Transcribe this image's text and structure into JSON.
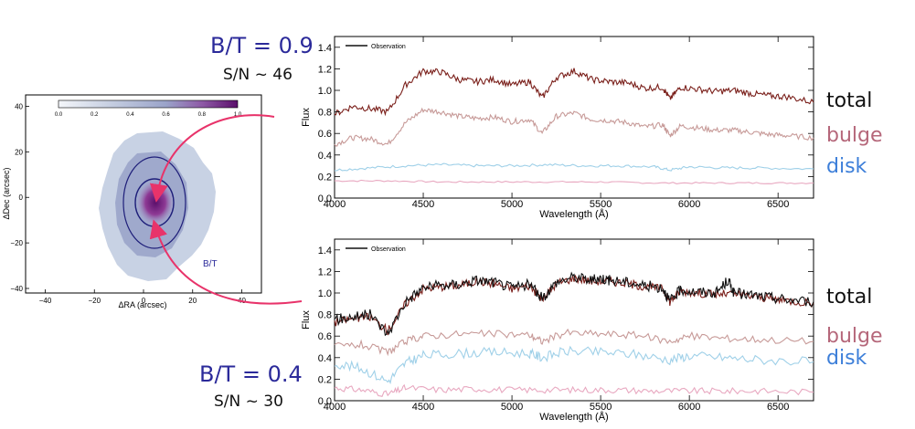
{
  "annotations": {
    "top_bt": "B/T = 0.9",
    "top_sn": "S/N ~ 46",
    "bottom_bt": "B/T = 0.4",
    "bottom_sn": "S/N ~ 30",
    "map_label": "B/T",
    "components": {
      "total": "total",
      "bulge": "bulge",
      "disk": "disk"
    }
  },
  "colors": {
    "observation": "#111111",
    "total": "#7a1f1a",
    "bulge": "#c79a98",
    "disk": "#9fd0e8",
    "disk_bottom_panel": "#e8a8c0",
    "arrows": "#e8336a",
    "bt_text": "#2b2a9a",
    "bulge_label": "#b5677a",
    "disk_label": "#3d7fd9"
  },
  "chart_data": [
    {
      "type": "heatmap",
      "title": "",
      "xlabel": "ΔRA (arcsec)",
      "ylabel": "ΔDec (arcsec)",
      "xlim": [
        -48,
        48
      ],
      "ylim": [
        -42,
        45
      ],
      "xticks": [
        -40,
        -20,
        0,
        20,
        40
      ],
      "yticks": [
        40,
        20,
        0,
        -20,
        -40
      ],
      "colorbar": {
        "ticks": [
          0.0,
          0.2,
          0.4,
          0.6,
          0.8,
          1.0
        ],
        "labels": [
          "0.0",
          "0.2",
          "0.4",
          "0.6",
          "0.8",
          "1.0"
        ]
      },
      "inner_ellipse": {
        "center": [
          0,
          0
        ],
        "semi_axes": [
          10,
          14
        ]
      },
      "outer_ellipse": {
        "center": [
          0,
          0
        ],
        "semi_axes": [
          16,
          28
        ]
      }
    },
    {
      "type": "line",
      "legend": [
        "Observation"
      ],
      "xlabel": "Wavelength (Å)",
      "ylabel": "Flux",
      "xlim": [
        4000,
        6700
      ],
      "ylim": [
        0.0,
        1.5
      ],
      "xticks": [
        4000,
        4500,
        5000,
        5500,
        6000,
        6500
      ],
      "yticks": [
        0.0,
        0.2,
        0.4,
        0.6,
        0.8,
        1.0,
        1.2,
        1.4
      ],
      "series": [
        {
          "points": [
            [
              4000,
              0.78
            ],
            [
              4100,
              0.85
            ],
            [
              4200,
              0.83
            ],
            [
              4300,
              0.8
            ],
            [
              4400,
              1.05
            ],
            [
              4500,
              1.18
            ],
            [
              4600,
              1.17
            ],
            [
              4700,
              1.1
            ],
            [
              4800,
              1.08
            ],
            [
              4900,
              1.1
            ],
            [
              5000,
              1.05
            ],
            [
              5100,
              1.08
            ],
            [
              5170,
              0.93
            ],
            [
              5250,
              1.12
            ],
            [
              5350,
              1.18
            ],
            [
              5450,
              1.1
            ],
            [
              5550,
              1.08
            ],
            [
              5650,
              1.07
            ],
            [
              5750,
              1.02
            ],
            [
              5850,
              1.03
            ],
            [
              5890,
              0.92
            ],
            [
              5950,
              1.03
            ],
            [
              6050,
              1.01
            ],
            [
              6150,
              0.99
            ],
            [
              6250,
              1.0
            ],
            [
              6350,
              0.97
            ],
            [
              6450,
              0.95
            ],
            [
              6550,
              0.94
            ],
            [
              6700,
              0.89
            ]
          ]
        },
        {
          "points": [
            [
              4000,
              0.5
            ],
            [
              4100,
              0.56
            ],
            [
              4200,
              0.55
            ],
            [
              4300,
              0.5
            ],
            [
              4400,
              0.7
            ],
            [
              4500,
              0.82
            ],
            [
              4600,
              0.8
            ],
            [
              4700,
              0.76
            ],
            [
              4800,
              0.74
            ],
            [
              4900,
              0.75
            ],
            [
              5000,
              0.71
            ],
            [
              5100,
              0.73
            ],
            [
              5170,
              0.6
            ],
            [
              5250,
              0.76
            ],
            [
              5350,
              0.79
            ],
            [
              5450,
              0.73
            ],
            [
              5550,
              0.72
            ],
            [
              5650,
              0.7
            ],
            [
              5750,
              0.66
            ],
            [
              5850,
              0.68
            ],
            [
              5890,
              0.58
            ],
            [
              5950,
              0.67
            ],
            [
              6050,
              0.65
            ],
            [
              6150,
              0.63
            ],
            [
              6250,
              0.63
            ],
            [
              6350,
              0.61
            ],
            [
              6450,
              0.59
            ],
            [
              6550,
              0.58
            ],
            [
              6700,
              0.56
            ]
          ]
        },
        {
          "points": [
            [
              4000,
              0.26
            ],
            [
              4200,
              0.28
            ],
            [
              4400,
              0.3
            ],
            [
              4600,
              0.31
            ],
            [
              4800,
              0.3
            ],
            [
              5000,
              0.3
            ],
            [
              5200,
              0.31
            ],
            [
              5400,
              0.3
            ],
            [
              5600,
              0.3
            ],
            [
              5800,
              0.29
            ],
            [
              5890,
              0.26
            ],
            [
              6000,
              0.29
            ],
            [
              6200,
              0.28
            ],
            [
              6400,
              0.28
            ],
            [
              6700,
              0.27
            ]
          ]
        },
        {
          "points": [
            [
              4000,
              0.16
            ],
            [
              4300,
              0.16
            ],
            [
              4600,
              0.15
            ],
            [
              4900,
              0.15
            ],
            [
              5200,
              0.15
            ],
            [
              5500,
              0.15
            ],
            [
              5800,
              0.14
            ],
            [
              6100,
              0.14
            ],
            [
              6400,
              0.14
            ],
            [
              6700,
              0.14
            ]
          ]
        }
      ]
    },
    {
      "type": "line",
      "legend": [
        "Observation"
      ],
      "xlabel": "Wavelength (Å)",
      "ylabel": "Flux",
      "xlim": [
        4000,
        6700
      ],
      "ylim": [
        0.0,
        1.5
      ],
      "xticks": [
        4000,
        4500,
        5000,
        5500,
        6000,
        6500
      ],
      "yticks": [
        0.0,
        0.2,
        0.4,
        0.6,
        0.8,
        1.0,
        1.2,
        1.4
      ],
      "series": [
        {
          "points": [
            [
              4000,
              0.75
            ],
            [
              4100,
              0.78
            ],
            [
              4200,
              0.8
            ],
            [
              4300,
              0.62
            ],
            [
              4400,
              0.92
            ],
            [
              4500,
              1.05
            ],
            [
              4600,
              1.07
            ],
            [
              4700,
              1.08
            ],
            [
              4800,
              1.12
            ],
            [
              4900,
              1.1
            ],
            [
              5000,
              1.05
            ],
            [
              5100,
              1.08
            ],
            [
              5170,
              0.95
            ],
            [
              5250,
              1.1
            ],
            [
              5350,
              1.15
            ],
            [
              5450,
              1.12
            ],
            [
              5500,
              1.14
            ],
            [
              5550,
              1.12
            ],
            [
              5650,
              1.1
            ],
            [
              5750,
              1.07
            ],
            [
              5850,
              1.05
            ],
            [
              5890,
              0.92
            ],
            [
              5950,
              1.03
            ],
            [
              6050,
              1.01
            ],
            [
              6150,
              1.0
            ],
            [
              6220,
              1.12
            ],
            [
              6250,
              1.0
            ],
            [
              6350,
              0.98
            ],
            [
              6450,
              0.96
            ],
            [
              6550,
              0.94
            ],
            [
              6700,
              0.92
            ]
          ]
        },
        {
          "points": [
            [
              4000,
              0.73
            ],
            [
              4100,
              0.76
            ],
            [
              4200,
              0.78
            ],
            [
              4300,
              0.65
            ],
            [
              4400,
              0.9
            ],
            [
              4500,
              1.04
            ],
            [
              4600,
              1.06
            ],
            [
              4700,
              1.07
            ],
            [
              4800,
              1.11
            ],
            [
              4900,
              1.09
            ],
            [
              5000,
              1.04
            ],
            [
              5100,
              1.07
            ],
            [
              5170,
              0.94
            ],
            [
              5250,
              1.09
            ],
            [
              5350,
              1.14
            ],
            [
              5450,
              1.11
            ],
            [
              5550,
              1.11
            ],
            [
              5650,
              1.09
            ],
            [
              5750,
              1.06
            ],
            [
              5850,
              1.04
            ],
            [
              5890,
              0.92
            ],
            [
              5950,
              1.02
            ],
            [
              6050,
              1.0
            ],
            [
              6150,
              0.99
            ],
            [
              6250,
              0.99
            ],
            [
              6350,
              0.97
            ],
            [
              6450,
              0.95
            ],
            [
              6550,
              0.93
            ],
            [
              6700,
              0.91
            ]
          ]
        },
        {
          "points": [
            [
              4000,
              0.5
            ],
            [
              4150,
              0.52
            ],
            [
              4300,
              0.45
            ],
            [
              4400,
              0.55
            ],
            [
              4500,
              0.6
            ],
            [
              4700,
              0.62
            ],
            [
              4900,
              0.62
            ],
            [
              5100,
              0.61
            ],
            [
              5170,
              0.55
            ],
            [
              5300,
              0.63
            ],
            [
              5500,
              0.62
            ],
            [
              5700,
              0.61
            ],
            [
              5890,
              0.55
            ],
            [
              6000,
              0.6
            ],
            [
              6200,
              0.58
            ],
            [
              6400,
              0.57
            ],
            [
              6700,
              0.55
            ]
          ]
        },
        {
          "points": [
            [
              4000,
              0.35
            ],
            [
              4150,
              0.3
            ],
            [
              4300,
              0.18
            ],
            [
              4400,
              0.35
            ],
            [
              4500,
              0.42
            ],
            [
              4700,
              0.44
            ],
            [
              4900,
              0.45
            ],
            [
              5100,
              0.44
            ],
            [
              5170,
              0.4
            ],
            [
              5300,
              0.46
            ],
            [
              5500,
              0.45
            ],
            [
              5700,
              0.43
            ],
            [
              5890,
              0.38
            ],
            [
              6000,
              0.42
            ],
            [
              6200,
              0.4
            ],
            [
              6400,
              0.38
            ],
            [
              6700,
              0.36
            ]
          ]
        },
        {
          "points": [
            [
              4000,
              0.12
            ],
            [
              4150,
              0.1
            ],
            [
              4300,
              0.06
            ],
            [
              4400,
              0.12
            ],
            [
              4600,
              0.1
            ],
            [
              4800,
              0.11
            ],
            [
              5000,
              0.1
            ],
            [
              5200,
              0.1
            ],
            [
              5400,
              0.1
            ],
            [
              5600,
              0.1
            ],
            [
              5800,
              0.09
            ],
            [
              6000,
              0.09
            ],
            [
              6200,
              0.09
            ],
            [
              6400,
              0.09
            ],
            [
              6700,
              0.08
            ]
          ]
        }
      ]
    }
  ]
}
